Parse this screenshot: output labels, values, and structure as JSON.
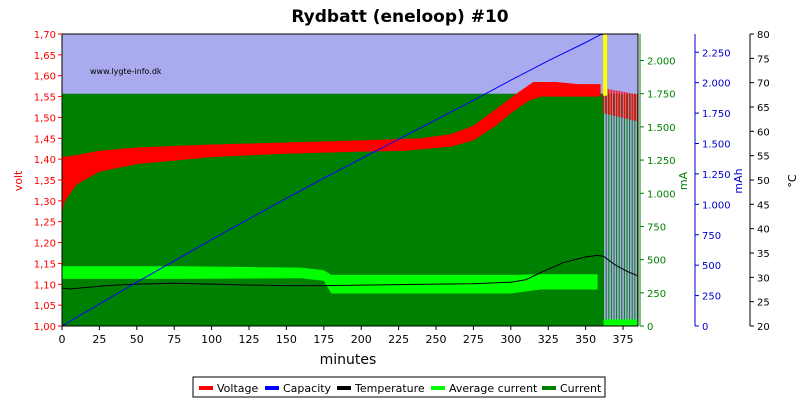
{
  "chart_data": {
    "type": "line",
    "title": "Rydbatt (eneloop) #10",
    "watermark": "www.lygte-info.dk",
    "xlabel": "minutes",
    "xlim": [
      0,
      385
    ],
    "x_ticks": [
      "0",
      "25",
      "50",
      "75",
      "100",
      "125",
      "150",
      "175",
      "200",
      "225",
      "250",
      "275",
      "300",
      "325",
      "350",
      "375"
    ],
    "axes": {
      "volt": {
        "label": "volt",
        "color": "#ff0000",
        "lim": [
          1.0,
          1.7
        ],
        "ticks": [
          "1,00",
          "1,05",
          "1,10",
          "1,15",
          "1,20",
          "1,25",
          "1,30",
          "1,35",
          "1,40",
          "1,45",
          "1,50",
          "1,55",
          "1,60",
          "1,65",
          "1,70"
        ]
      },
      "ma": {
        "label": "mA",
        "color": "#008000",
        "lim": [
          0,
          2200
        ],
        "ticks": [
          "0",
          "250",
          "500",
          "750",
          "1.000",
          "1.250",
          "1.500",
          "1.750",
          "2.000"
        ]
      },
      "mah": {
        "label": "mAh",
        "color": "#0000cc",
        "lim": [
          0,
          2400
        ],
        "ticks": [
          "0",
          "250",
          "500",
          "750",
          "1.000",
          "1.250",
          "1.500",
          "1.750",
          "2.000",
          "2.250"
        ]
      },
      "temp": {
        "label": "°C",
        "color": "#000000",
        "lim": [
          20,
          80
        ],
        "ticks": [
          "20",
          "25",
          "30",
          "35",
          "40",
          "45",
          "50",
          "55",
          "60",
          "65",
          "70",
          "75",
          "80"
        ]
      }
    },
    "series": [
      {
        "name": "Voltage",
        "axis": "volt",
        "color": "#ff0000",
        "upper": [
          [
            0,
            1.405
          ],
          [
            10,
            1.41
          ],
          [
            25,
            1.42
          ],
          [
            50,
            1.428
          ],
          [
            100,
            1.435
          ],
          [
            150,
            1.44
          ],
          [
            200,
            1.445
          ],
          [
            240,
            1.45
          ],
          [
            260,
            1.46
          ],
          [
            275,
            1.48
          ],
          [
            290,
            1.52
          ],
          [
            305,
            1.56
          ],
          [
            315,
            1.585
          ],
          [
            330,
            1.585
          ],
          [
            345,
            1.58
          ],
          [
            360,
            1.58
          ]
        ],
        "lower": [
          [
            0,
            1.27
          ],
          [
            2,
            1.3
          ],
          [
            10,
            1.34
          ],
          [
            25,
            1.37
          ],
          [
            50,
            1.388
          ],
          [
            100,
            1.405
          ],
          [
            150,
            1.413
          ],
          [
            200,
            1.418
          ],
          [
            230,
            1.42
          ],
          [
            260,
            1.43
          ],
          [
            275,
            1.445
          ],
          [
            290,
            1.48
          ],
          [
            300,
            1.51
          ],
          [
            312,
            1.54
          ],
          [
            320,
            1.55
          ],
          [
            360,
            1.55
          ]
        ],
        "tail_upper": [
          [
            362,
            1.57
          ],
          [
            385,
            1.555
          ]
        ],
        "tail_lower": [
          [
            362,
            1.51
          ],
          [
            385,
            1.49
          ]
        ]
      },
      {
        "name": "Capacity",
        "axis": "mah",
        "color": "#0000ff",
        "points": [
          [
            0,
            0
          ],
          [
            25,
            180
          ],
          [
            50,
            360
          ],
          [
            75,
            535
          ],
          [
            100,
            710
          ],
          [
            125,
            880
          ],
          [
            150,
            1050
          ],
          [
            175,
            1215
          ],
          [
            200,
            1375
          ],
          [
            225,
            1535
          ],
          [
            250,
            1695
          ],
          [
            275,
            1855
          ],
          [
            300,
            2020
          ],
          [
            325,
            2180
          ],
          [
            350,
            2330
          ],
          [
            360,
            2395
          ],
          [
            365,
            2400
          ],
          [
            385,
            2400
          ]
        ]
      },
      {
        "name": "Temperature",
        "axis": "temp",
        "color": "#000000",
        "points": [
          [
            0,
            27.8
          ],
          [
            5,
            27.6
          ],
          [
            15,
            27.9
          ],
          [
            30,
            28.3
          ],
          [
            50,
            28.6
          ],
          [
            75,
            28.8
          ],
          [
            100,
            28.6
          ],
          [
            125,
            28.4
          ],
          [
            150,
            28.3
          ],
          [
            175,
            28.3
          ],
          [
            200,
            28.4
          ],
          [
            225,
            28.5
          ],
          [
            250,
            28.6
          ],
          [
            275,
            28.7
          ],
          [
            300,
            29
          ],
          [
            310,
            29.5
          ],
          [
            320,
            31
          ],
          [
            335,
            33
          ],
          [
            350,
            34.2
          ],
          [
            358,
            34.5
          ],
          [
            362,
            34.3
          ],
          [
            370,
            32.5
          ],
          [
            378,
            31.2
          ],
          [
            385,
            30.3
          ]
        ]
      },
      {
        "name": "Average current",
        "axis": "ma",
        "color": "#00ff00",
        "upper": [
          [
            0,
            450
          ],
          [
            80,
            450
          ],
          [
            160,
            440
          ],
          [
            175,
            420
          ],
          [
            180,
            385
          ],
          [
            300,
            385
          ],
          [
            320,
            390
          ],
          [
            358,
            390
          ]
        ],
        "lower": [
          [
            0,
            355
          ],
          [
            80,
            355
          ],
          [
            160,
            360
          ],
          [
            175,
            340
          ],
          [
            180,
            245
          ],
          [
            300,
            245
          ],
          [
            320,
            275
          ],
          [
            358,
            275
          ]
        ],
        "tail_upper": [
          [
            362,
            50
          ],
          [
            385,
            50
          ]
        ],
        "tail_lower": [
          [
            362,
            0
          ],
          [
            385,
            0
          ]
        ]
      },
      {
        "name": "Current",
        "axis": "ma",
        "color": "#008000",
        "level": 1750,
        "stop": 362,
        "pulse_start": 362,
        "pulse_end": 385
      }
    ],
    "background": {
      "upper_band": "#aaaaee",
      "plot_fill": "#008000"
    },
    "marker": {
      "x": 363,
      "color": "#ffff00"
    },
    "legend": {
      "placement": "bottom",
      "items": [
        {
          "label": "Voltage",
          "color": "#ff0000"
        },
        {
          "label": "Capacity",
          "color": "#0000ff"
        },
        {
          "label": "Temperature",
          "color": "#000000"
        },
        {
          "label": "Average current",
          "color": "#00ff00"
        },
        {
          "label": "Current",
          "color": "#008000"
        }
      ]
    }
  }
}
